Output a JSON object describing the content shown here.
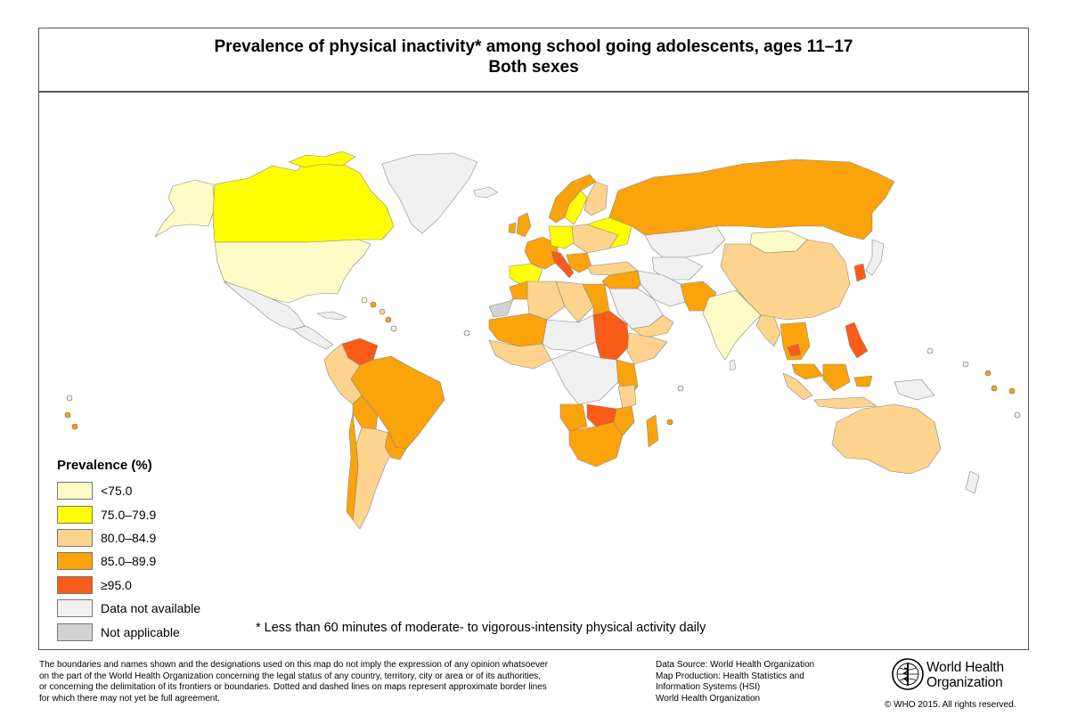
{
  "title": {
    "line1": "Prevalence of physical inactivity* among school going adolescents, ages 11–17",
    "line2": "Both sexes"
  },
  "legend": {
    "title": "Prevalence (%)",
    "items": [
      {
        "label": "<75.0",
        "color": "#fffbc6"
      },
      {
        "label": "75.0–79.9",
        "color": "#ffff00"
      },
      {
        "label": "80.0–84.9",
        "color": "#fdd38d"
      },
      {
        "label": "85.0–89.9",
        "color": "#fba30a"
      },
      {
        "label": "≥95.0",
        "color": "#fa5b18"
      },
      {
        "label": "Data not available",
        "color": "#f0f0f0"
      },
      {
        "label": "Not applicable",
        "color": "#d2d2d2"
      }
    ]
  },
  "footnote": "* Less than 60 minutes of moderate- to vigorous-intensity physical activity daily",
  "disclaimer": [
    "The boundaries and names shown and the designations used on this map do not imply the expression of any opinion whatsoever",
    "on the part of the World Health Organization concerning the legal status of any country, territory, city or area or of its authorities,",
    "or concerning the delimitation of its frontiers or boundaries. Dotted and dashed lines on maps represent approximate border lines",
    "for which there may not yet be full agreement."
  ],
  "source": [
    "Data Source: World Health Organization",
    "Map Production: Health Statistics and",
    "Information Systems (HSI)",
    "World Health Organization"
  ],
  "logo": {
    "line1": "World Health",
    "line2": "Organization",
    "icon": "who-emblem-icon"
  },
  "copyright": "© WHO 2015. All rights reserved.",
  "colors": {
    "lt75": "#fffbc6",
    "y75": "#ffff00",
    "o80": "#fdd38d",
    "o85": "#fba30a",
    "r95": "#fa5b18",
    "na": "#f0f0f0",
    "notapp": "#d2d2d2"
  }
}
